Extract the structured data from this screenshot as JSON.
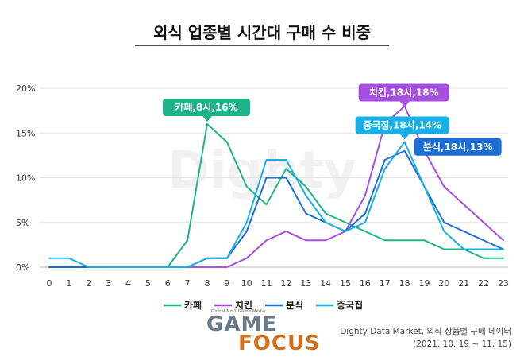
{
  "chart_data": {
    "type": "line",
    "title": "외식 업종별 시간대 구매 수 비중",
    "xlabel": "",
    "ylabel": "",
    "x": [
      0,
      1,
      2,
      3,
      4,
      5,
      6,
      7,
      8,
      9,
      10,
      11,
      12,
      13,
      14,
      15,
      16,
      17,
      18,
      19,
      20,
      21,
      22,
      23
    ],
    "ylim": [
      0,
      20
    ],
    "yticks": [
      0,
      5,
      10,
      15,
      20
    ],
    "ytick_labels": [
      "0%",
      "5%",
      "10%",
      "15%",
      "20%"
    ],
    "grid": true,
    "legend_position": "bottom",
    "series": [
      {
        "name": "카페",
        "color": "#1fb38a",
        "values": [
          0,
          0,
          0,
          0,
          0,
          0,
          0,
          3,
          16,
          14,
          9,
          7,
          11,
          9,
          6,
          5,
          4,
          3,
          3,
          3,
          2,
          2,
          1,
          1
        ]
      },
      {
        "name": "치킨",
        "color": "#a64ee0",
        "values": [
          0,
          0,
          0,
          0,
          0,
          0,
          0,
          0,
          0,
          0,
          1,
          3,
          4,
          3,
          3,
          4,
          8,
          16,
          18,
          13,
          9,
          7,
          5,
          3
        ]
      },
      {
        "name": "분식",
        "color": "#1c6ed4",
        "values": [
          0,
          0,
          0,
          0,
          0,
          0,
          0,
          0,
          1,
          1,
          4,
          10,
          10,
          6,
          5,
          4,
          6,
          12,
          13,
          9,
          5,
          4,
          3,
          2
        ]
      },
      {
        "name": "중국집",
        "color": "#17b0e6",
        "values": [
          1,
          1,
          0,
          0,
          0,
          0,
          0,
          0,
          1,
          1,
          5,
          12,
          12,
          8,
          5,
          4,
          5,
          11,
          14,
          9,
          4,
          2,
          2,
          2
        ]
      }
    ],
    "annotations": [
      {
        "text": "카페,8시,16%",
        "color": "#1fb38a",
        "x": 8,
        "y": 16
      },
      {
        "text": "치킨,18시,18%",
        "color": "#a64ee0",
        "x": 18,
        "y": 18
      },
      {
        "text": "중국집,18시,14%",
        "color": "#17b0e6",
        "x": 18,
        "y": 14
      },
      {
        "text": "분식,18시,13%",
        "color": "#1c6ed4",
        "x": 18,
        "y": 13
      }
    ]
  },
  "watermark": "Dighty",
  "source": {
    "line1": "Dighty Data Market, 외식 상품별 구매 데이터",
    "line2": "(2021. 10. 19 ~ 11. 15)"
  },
  "logo": {
    "game": "GAME",
    "focus": "FOCUS",
    "tagline": "Global No.1 Game Media"
  }
}
